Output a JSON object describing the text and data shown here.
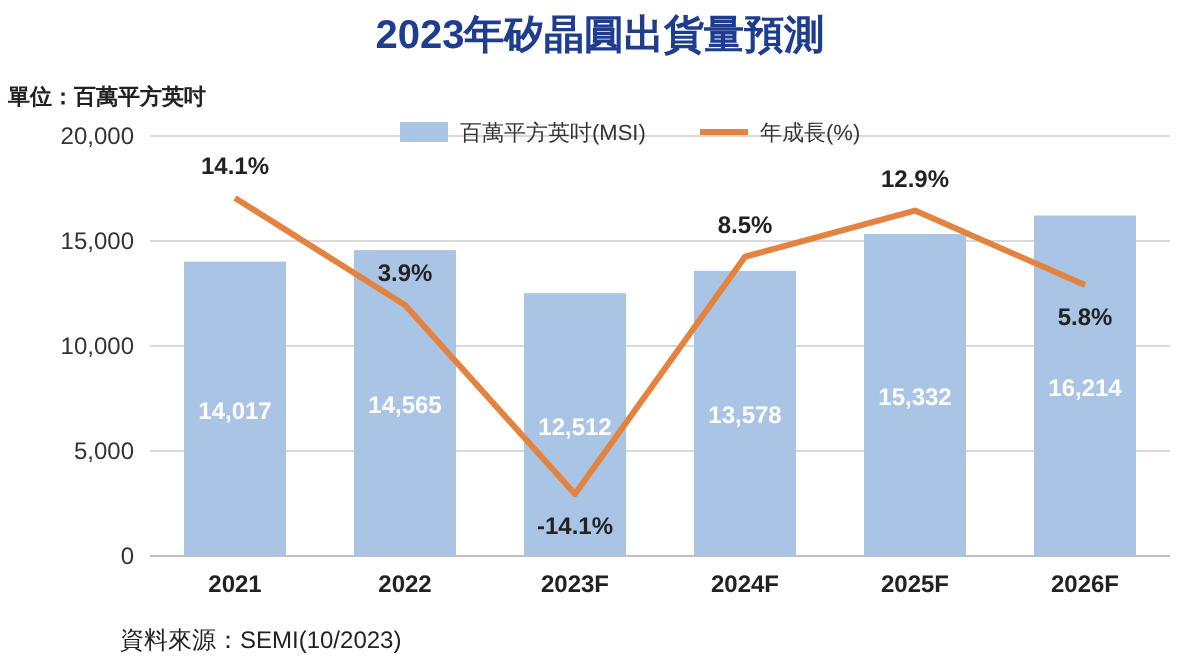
{
  "chart_data": {
    "type": "bar",
    "title": "2023年矽晶圓出貨量預測",
    "ylabel": "單位：百萬平方英吋",
    "annotations": [
      "資料來源：SEMI(10/2023)"
    ],
    "categories": [
      "2021",
      "2022",
      "2023F",
      "2024F",
      "2025F",
      "2026F"
    ],
    "series": [
      {
        "name": "百萬平方英吋(MSI)",
        "color": "#a9c4e5",
        "values": [
          14017,
          14565,
          12512,
          13578,
          15332,
          16214
        ],
        "value_labels": [
          "14,017",
          "14,565",
          "12,512",
          "13,578",
          "15,332",
          "16,214"
        ]
      },
      {
        "name": "年成長(%)",
        "type": "line",
        "axis": "y2",
        "color": "#e4833f",
        "values": [
          14.1,
          3.9,
          -14.1,
          8.5,
          12.9,
          5.8
        ],
        "value_labels": [
          "14.1%",
          "3.9%",
          "-14.1%",
          "8.5%",
          "12.9%",
          "5.8%"
        ]
      }
    ],
    "ylim": [
      0,
      20000
    ],
    "yticks": [
      {
        "value": 0,
        "label": "0"
      },
      {
        "value": 5000,
        "label": "5,000"
      },
      {
        "value": 10000,
        "label": "10,000"
      },
      {
        "value": 15000,
        "label": "15,000"
      },
      {
        "value": 20000,
        "label": "20,000"
      }
    ],
    "y2lim": [
      -20,
      20
    ],
    "grid": "y",
    "legend": "top",
    "marker": "none",
    "line_style": "solid"
  }
}
